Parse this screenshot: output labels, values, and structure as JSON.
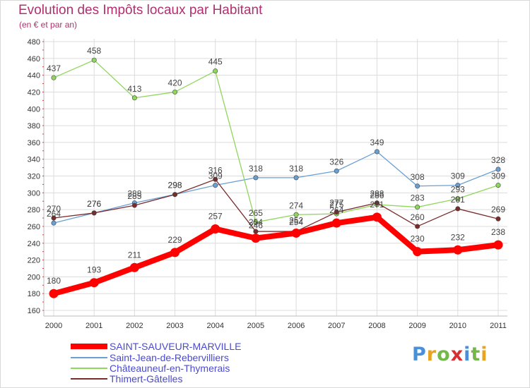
{
  "header": {
    "title": "Evolution des Impôts locaux par Habitant",
    "subtitle": "(en € et par an)"
  },
  "logo": {
    "text": "Proxiti",
    "letters": [
      {
        "ch": "P",
        "color": "#4a8fd8"
      },
      {
        "ch": "r",
        "color": "#e8a320"
      },
      {
        "ch": "o",
        "color": "#74b84a"
      },
      {
        "ch": "x",
        "color": "#d83030"
      },
      {
        "ch": "i",
        "color": "#4a8fd8"
      },
      {
        "ch": "t",
        "color": "#74b84a"
      },
      {
        "ch": "i",
        "color": "#e8a320"
      }
    ]
  },
  "chart_data": {
    "type": "line",
    "title": "Evolution des Impôts locaux par Habitant",
    "subtitle": "(en € et par an)",
    "x": [
      "2000",
      "2001",
      "2002",
      "2003",
      "2004",
      "2005",
      "2006",
      "2007",
      "2008",
      "2009",
      "2010",
      "2011"
    ],
    "ylim": [
      160,
      480
    ],
    "yticks": [
      160,
      180,
      200,
      220,
      240,
      260,
      280,
      300,
      320,
      340,
      360,
      380,
      400,
      420,
      440,
      460,
      480
    ],
    "grid": true,
    "legend_position": "bottom-left",
    "series": [
      {
        "name": "SAINT-SAUVEUR-MARVILLE",
        "color": "#ff0000",
        "emphasis": true,
        "values": [
          180,
          193,
          211,
          229,
          257,
          246,
          252,
          264,
          271,
          230,
          232,
          238
        ]
      },
      {
        "name": "Saint-Jean-de-Rebervilliers",
        "color": "#6a9fd4",
        "values": [
          264,
          276,
          288,
          298,
          309,
          318,
          318,
          326,
          349,
          308,
          309,
          328
        ]
      },
      {
        "name": "Châteauneuf-en-Thymerais",
        "color": "#8fd65c",
        "values": [
          437,
          458,
          413,
          420,
          445,
          265,
          274,
          275,
          286,
          283,
          293,
          309
        ]
      },
      {
        "name": "Thimert-Gâtelles",
        "color": "#7a2b2b",
        "values": [
          270,
          276,
          285,
          298,
          316,
          254,
          254,
          277,
          288,
          260,
          281,
          269
        ]
      }
    ]
  }
}
